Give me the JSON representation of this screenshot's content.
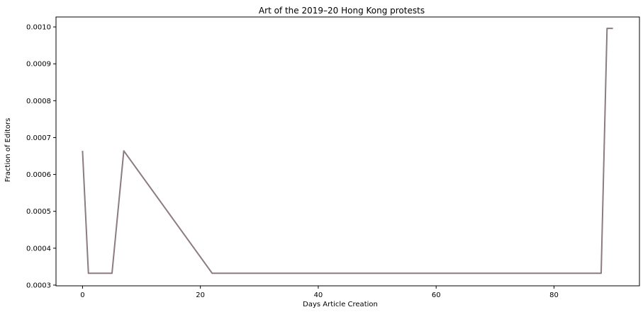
{
  "chart_data": {
    "type": "line",
    "title": "Art of the 2019–20 Hong Kong protests",
    "xlabel": "Days Article Creation",
    "ylabel": "Fraction of Editors",
    "xlim": [
      -4.5,
      94.5
    ],
    "ylim": [
      0.000298,
      0.001027
    ],
    "xticks": [
      0,
      20,
      40,
      60,
      80
    ],
    "yticks": [
      0.0003,
      0.0004,
      0.0005,
      0.0006,
      0.0007,
      0.0008,
      0.0009,
      0.001
    ],
    "ytick_labels": [
      "0.0003",
      "0.0004",
      "0.0005",
      "0.0006",
      "0.0007",
      "0.0008",
      "0.0009",
      "0.0010"
    ],
    "grid": false,
    "legend": "none",
    "series": [
      {
        "color": "#8c7b7f",
        "x": [
          0,
          1,
          5,
          7,
          22,
          88,
          89,
          90
        ],
        "y": [
          0.000664,
          0.000332,
          0.000332,
          0.000664,
          0.000332,
          0.000332,
          0.000996,
          0.000996
        ]
      }
    ]
  }
}
